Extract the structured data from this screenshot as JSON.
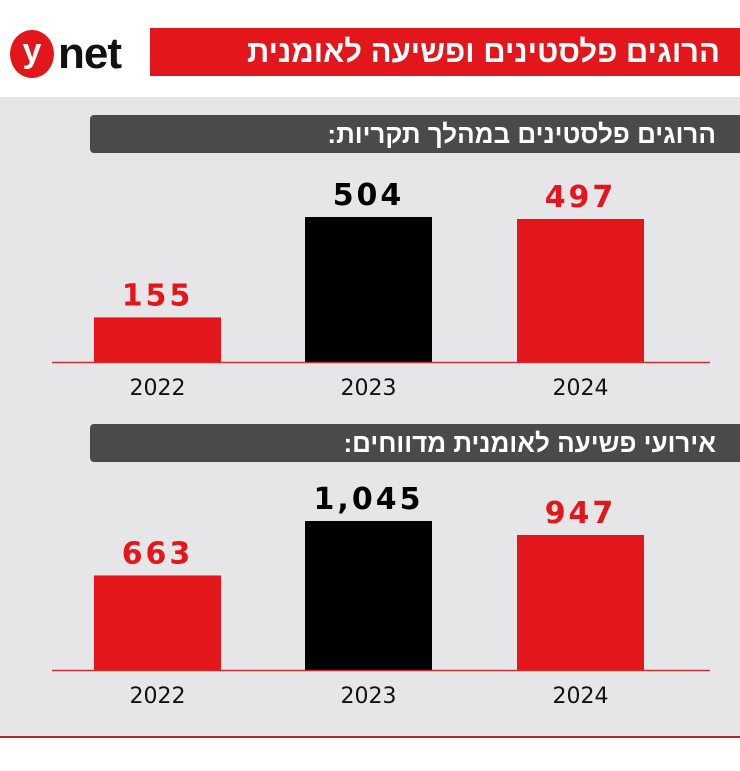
{
  "header": {
    "logo": "ynet",
    "title": "הרוגים פלסטינים ופשיעה לאומנית"
  },
  "colors": {
    "red": "#e2161b",
    "black": "#000000",
    "title_bar": "#4a4a4a",
    "background": "#e6e6e8"
  },
  "chart_data": [
    {
      "type": "bar",
      "title": "הרוגים פלסטינים במהלך תקריות:",
      "categories": [
        "2022",
        "2023",
        "2024"
      ],
      "values": [
        155,
        504,
        497
      ],
      "value_labels": [
        "155",
        "504",
        "497"
      ],
      "highlight": "2023",
      "bar_colors": [
        "#e2161b",
        "#000000",
        "#e2161b"
      ]
    },
    {
      "type": "bar",
      "title": "אירועי פשיעה לאומנית מדווחים:",
      "categories": [
        "2022",
        "2023",
        "2024"
      ],
      "values": [
        663,
        1045,
        947
      ],
      "value_labels": [
        "663",
        "1,045",
        "947"
      ],
      "highlight": "2023",
      "bar_colors": [
        "#e2161b",
        "#000000",
        "#e2161b"
      ]
    }
  ]
}
